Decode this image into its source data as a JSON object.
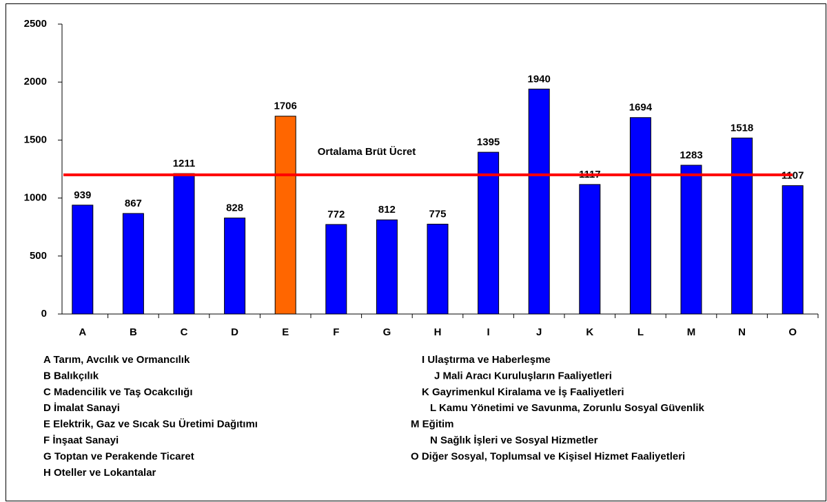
{
  "chart_data": {
    "type": "bar",
    "categories": [
      "A",
      "B",
      "C",
      "D",
      "E",
      "F",
      "G",
      "H",
      "I",
      "J",
      "K",
      "L",
      "M",
      "N",
      "O"
    ],
    "values": [
      939,
      867,
      1211,
      828,
      1706,
      772,
      812,
      775,
      1395,
      1940,
      1117,
      1694,
      1283,
      1518,
      1107
    ],
    "colors": [
      "#0000ff",
      "#0000ff",
      "#0000ff",
      "#0000ff",
      "#ff6600",
      "#0000ff",
      "#0000ff",
      "#0000ff",
      "#0000ff",
      "#0000ff",
      "#0000ff",
      "#0000ff",
      "#0000ff",
      "#0000ff",
      "#0000ff"
    ],
    "ylim": [
      0,
      2500
    ],
    "yticks": [
      0,
      500,
      1000,
      1500,
      2000,
      2500
    ],
    "grid": false,
    "reference_line": {
      "value": 1200,
      "label": "Ortalama Brüt Ücret",
      "color": "#ff0000"
    },
    "legend_notes": [
      "A Tarım, Avcılık ve Ormancılık",
      "B Balıkçılık",
      "C Madencilik ve Taş Ocakcılığı",
      "D İmalat Sanayi",
      "E Elektrik, Gaz ve Sıcak Su Üretimi Dağıtımı",
      "F İnşaat Sanayi",
      "G Toptan ve Perakende Ticaret",
      "H Oteller ve Lokantalar",
      "I Ulaştırma ve Haberleşme",
      "J Mali Aracı Kuruluşların Faaliyetleri",
      "K Gayrimenkul Kiralama ve İş Faaliyetleri",
      "L Kamu Yönetimi ve Savunma, Zorunlu Sosyal Güvenlik",
      "M Eğitim",
      "N Sağlık İşleri ve Sosyal Hizmetler",
      "O Diğer Sosyal, Toplumsal ve Kişisel Hizmet Faaliyetleri"
    ]
  }
}
